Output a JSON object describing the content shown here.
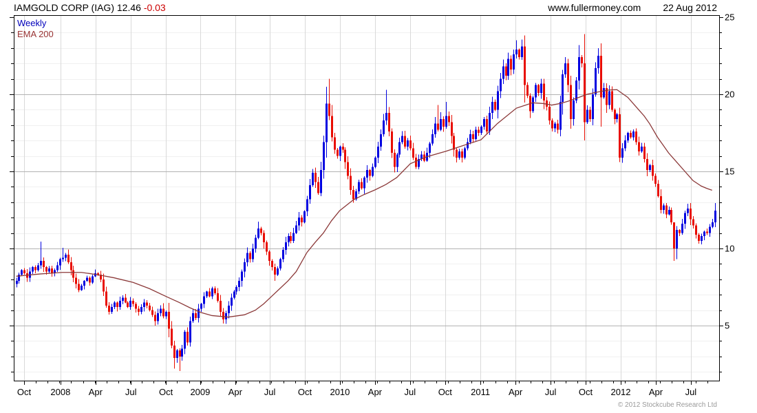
{
  "header": {
    "title": "IAMGOLD CORP (IAG)",
    "price": "12.46",
    "change": "-0.03",
    "website": "www.fullermoney.com",
    "date": "22 Aug 2012"
  },
  "legend": {
    "weekly": "Weekly",
    "ema": "EMA 200"
  },
  "footer": {
    "copyright": "© 2012 Stockcube Research Ltd"
  },
  "colors": {
    "up": "#0000e0",
    "down": "#e80c00",
    "ema": "#8b3838",
    "grid_minor": "#f0f0f0",
    "grid_major": "#b2b2b2",
    "grid_vert": "#d9d9d9",
    "axis": "#000000",
    "change_negative": "#cc0000",
    "legend_weekly": "#0000bb",
    "legend_ema": "#993333",
    "copyright": "#9a9a9a"
  },
  "chart_data": {
    "type": "candlestick",
    "title": "IAMGOLD CORP (IAG)",
    "interval": "weekly",
    "last_price": 12.46,
    "last_change": -0.03,
    "ylim": [
      1.4,
      25.15
    ],
    "y_ticks": [
      5,
      10,
      15,
      20,
      25
    ],
    "y_minor_step": 1,
    "grid": "on",
    "x_ticks": [
      [
        "Oct",
        2.9
      ],
      [
        "2008",
        16.3
      ],
      [
        "Apr",
        29.2
      ],
      [
        "Jul",
        42.2
      ],
      [
        "Oct",
        55.1
      ],
      [
        "2009",
        67.7
      ],
      [
        "Apr",
        80.6
      ],
      [
        "Jul",
        93.3
      ],
      [
        "Oct",
        106.2
      ],
      [
        "2010",
        119.1
      ],
      [
        "Apr",
        132.0
      ],
      [
        "Jul",
        144.9
      ],
      [
        "Oct",
        157.8
      ],
      [
        "2011",
        170.8
      ],
      [
        "Apr",
        183.7
      ],
      [
        "Jul",
        196.6
      ],
      [
        "Oct",
        209.5
      ],
      [
        "2012",
        222.4
      ],
      [
        "Apr",
        235.3
      ],
      [
        "Jul",
        248.2
      ]
    ],
    "first_open": 7.7,
    "closes": [
      7.9,
      8.3,
      8.6,
      8.4,
      8.1,
      8.5,
      8.8,
      8.6,
      8.9,
      9.2,
      8.8,
      8.5,
      8.7,
      8.4,
      8.6,
      8.9,
      9.3,
      9.4,
      9.6,
      9.1,
      8.6,
      8.1,
      7.7,
      7.3,
      7.6,
      7.9,
      8.1,
      7.8,
      8.2,
      8.4,
      8.3,
      8.0,
      7.2,
      6.3,
      5.9,
      6.2,
      6.5,
      6.2,
      6.6,
      6.8,
      6.5,
      6.2,
      6.6,
      6.4,
      6.1,
      5.9,
      6.2,
      6.5,
      6.3,
      6.0,
      5.7,
      5.3,
      5.8,
      6.1,
      5.6,
      5.9,
      4.8,
      3.7,
      2.9,
      3.4,
      3.0,
      3.5,
      4.6,
      3.9,
      5.3,
      5.8,
      5.5,
      6.1,
      6.4,
      6.9,
      7.2,
      6.9,
      7.4,
      7.1,
      6.6,
      5.9,
      5.4,
      5.8,
      6.3,
      6.8,
      7.2,
      7.5,
      7.9,
      8.5,
      9.1,
      9.7,
      9.3,
      10.0,
      10.7,
      11.3,
      11.0,
      10.4,
      9.8,
      9.2,
      8.8,
      8.3,
      8.7,
      9.3,
      9.9,
      10.4,
      10.8,
      10.5,
      11.0,
      11.5,
      12.0,
      11.7,
      12.4,
      13.2,
      14.1,
      14.9,
      14.3,
      13.6,
      15.1,
      16.9,
      19.4,
      18.6,
      17.2,
      16.4,
      16.0,
      16.6,
      16.4,
      15.6,
      14.7,
      13.8,
      13.2,
      13.7,
      14.3,
      13.9,
      14.6,
      15.1,
      14.7,
      15.3,
      15.9,
      16.6,
      17.4,
      18.3,
      18.8,
      17.6,
      16.2,
      15.3,
      16.1,
      16.9,
      17.3,
      16.6,
      17.0,
      16.5,
      15.9,
      15.3,
      15.8,
      16.1,
      15.7,
      16.2,
      16.8,
      17.4,
      18.1,
      17.7,
      18.4,
      17.9,
      18.6,
      18.2,
      17.3,
      16.4,
      15.9,
      16.3,
      15.9,
      16.5,
      16.9,
      17.4,
      17.1,
      17.7,
      17.5,
      17.9,
      18.4,
      17.6,
      18.8,
      19.5,
      19.0,
      20.2,
      21.0,
      21.8,
      21.2,
      22.3,
      21.6,
      22.6,
      22.9,
      22.4,
      23.1,
      20.6,
      19.9,
      18.9,
      19.8,
      20.6,
      20.1,
      20.7,
      19.6,
      19.2,
      18.3,
      17.8,
      18.1,
      17.7,
      19.5,
      21.3,
      22.0,
      20.6,
      18.4,
      19.6,
      20.9,
      22.4,
      22.0,
      18.2,
      19.0,
      18.4,
      20.0,
      21.7,
      22.5,
      19.8,
      20.4,
      19.3,
      20.2,
      19.0,
      18.4,
      18.7,
      15.9,
      16.5,
      17.0,
      17.5,
      17.2,
      17.6,
      16.9,
      16.3,
      16.6,
      15.8,
      15.1,
      15.4,
      14.7,
      14.2,
      13.4,
      12.5,
      12.8,
      12.2,
      12.5,
      11.7,
      10.0,
      11.2,
      11.0,
      11.6,
      12.3,
      12.6,
      11.9,
      11.5,
      10.9,
      10.5,
      10.8,
      11.1,
      11.0,
      11.4,
      11.7,
      12.46
    ],
    "wick_overrides": {
      "9": {
        "h": 10.45
      },
      "17": {
        "h": 10.05
      },
      "58": {
        "l": 2.2
      },
      "60": {
        "l": 2.05
      },
      "89": {
        "h": 11.75
      },
      "95": {
        "l": 7.9
      },
      "115": {
        "h": 21.0
      },
      "136": {
        "h": 20.3
      },
      "155": {
        "h": 19.3
      },
      "158": {
        "h": 19.5
      },
      "184": {
        "h": 23.5
      },
      "186": {
        "h": 23.55
      },
      "202": {
        "h": 22.4
      },
      "207": {
        "h": 23.2
      },
      "209": {
        "h": 23.9,
        "l": 17.0
      },
      "214": {
        "h": 23.0
      },
      "215": {
        "h": 23.3,
        "l": 17.9
      },
      "222": {
        "l": 15.6
      },
      "242": {
        "h": 11.7,
        "l": 9.2
      },
      "243": {
        "l": 9.3
      },
      "247": {
        "h": 12.9
      },
      "257": {
        "h": 12.95
      }
    },
    "ema200": [
      [
        0,
        8.2
      ],
      [
        9,
        8.35
      ],
      [
        17,
        8.45
      ],
      [
        24,
        8.45
      ],
      [
        30,
        8.3
      ],
      [
        36,
        8.1
      ],
      [
        43,
        7.8
      ],
      [
        49,
        7.4
      ],
      [
        55,
        6.9
      ],
      [
        60,
        6.5
      ],
      [
        64,
        6.15
      ],
      [
        68,
        5.85
      ],
      [
        72,
        5.65
      ],
      [
        78,
        5.55
      ],
      [
        84,
        5.7
      ],
      [
        88,
        6.0
      ],
      [
        91,
        6.4
      ],
      [
        94,
        6.9
      ],
      [
        97,
        7.4
      ],
      [
        100,
        7.9
      ],
      [
        103,
        8.5
      ],
      [
        107,
        9.75
      ],
      [
        110,
        10.4
      ],
      [
        113,
        11.0
      ],
      [
        116,
        11.8
      ],
      [
        119,
        12.45
      ],
      [
        124,
        13.15
      ],
      [
        128,
        13.5
      ],
      [
        132,
        13.8
      ],
      [
        136,
        14.15
      ],
      [
        140,
        14.6
      ],
      [
        145,
        15.5
      ],
      [
        151,
        15.95
      ],
      [
        158,
        16.3
      ],
      [
        164,
        16.65
      ],
      [
        171,
        17.05
      ],
      [
        177,
        18.1
      ],
      [
        184,
        19.1
      ],
      [
        190,
        19.45
      ],
      [
        194,
        19.4
      ],
      [
        197,
        19.3
      ],
      [
        200,
        19.4
      ],
      [
        203,
        19.55
      ],
      [
        207,
        19.8
      ],
      [
        210,
        20.0
      ],
      [
        214,
        20.15
      ],
      [
        218,
        20.28
      ],
      [
        221,
        20.3
      ],
      [
        223,
        20.05
      ],
      [
        225,
        19.8
      ],
      [
        227,
        19.4
      ],
      [
        229,
        19.0
      ],
      [
        231,
        18.6
      ],
      [
        233,
        18.1
      ],
      [
        236,
        17.2
      ],
      [
        238,
        16.7
      ],
      [
        240,
        16.2
      ],
      [
        243,
        15.6
      ],
      [
        246,
        15.0
      ],
      [
        249,
        14.4
      ],
      [
        252,
        14.05
      ],
      [
        254,
        13.9
      ],
      [
        256,
        13.78
      ]
    ]
  }
}
